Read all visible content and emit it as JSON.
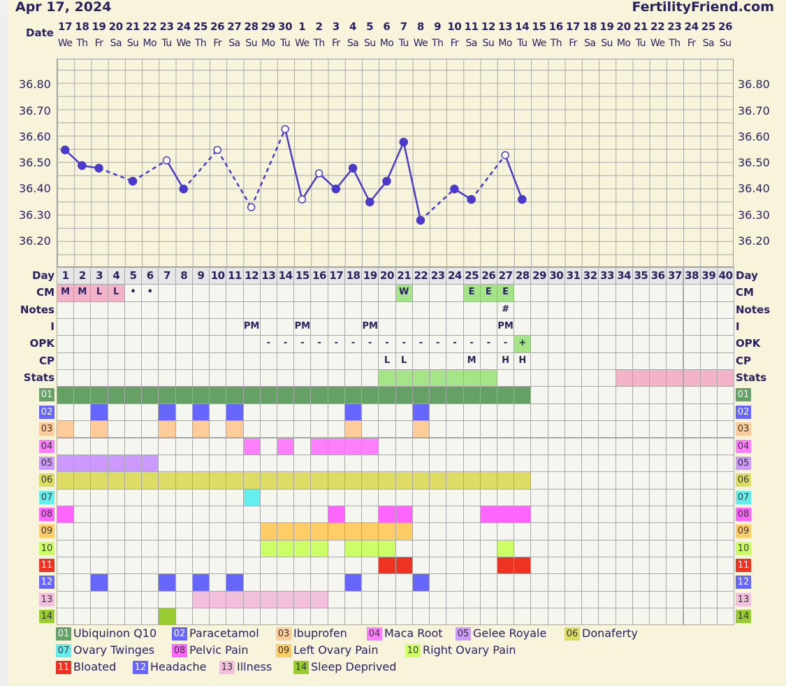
{
  "header": {
    "date_title": "Apr 17, 2024",
    "site": "FertilityFriend.com"
  },
  "row_labels": {
    "date": "Date",
    "day": "Day",
    "cm": "CM",
    "notes": "Notes",
    "i": "I",
    "opk": "OPK",
    "cp": "CP",
    "stats": "Stats"
  },
  "dates": [
    "17",
    "18",
    "19",
    "20",
    "21",
    "22",
    "23",
    "24",
    "25",
    "26",
    "27",
    "28",
    "29",
    "30",
    "1",
    "2",
    "3",
    "4",
    "5",
    "6",
    "7",
    "8",
    "9",
    "10",
    "11",
    "12",
    "13",
    "14",
    "15",
    "16",
    "17",
    "18",
    "19",
    "20",
    "21",
    "22",
    "23",
    "24",
    "25",
    "26"
  ],
  "weekdays": [
    "We",
    "Th",
    "Fr",
    "Sa",
    "Su",
    "Mo",
    "Tu",
    "We",
    "Th",
    "Fr",
    "Sa",
    "Su",
    "Mo",
    "Tu",
    "We",
    "Th",
    "Fr",
    "Sa",
    "Su",
    "Mo",
    "Tu",
    "We",
    "Th",
    "Fr",
    "Sa",
    "Su",
    "Mo",
    "Tu",
    "We",
    "Th",
    "Fr",
    "Sa",
    "Su",
    "Mo",
    "Tu",
    "We",
    "Th",
    "Fr",
    "Sa",
    "Su"
  ],
  "y_ticks": [
    "36.80",
    "36.70",
    "36.60",
    "36.50",
    "36.40",
    "36.30",
    "36.20"
  ],
  "temp_range": [
    36.1,
    36.9
  ],
  "temps": [
    {
      "day": 1,
      "t": 36.55,
      "open": false
    },
    {
      "day": 2,
      "t": 36.49,
      "open": false
    },
    {
      "day": 3,
      "t": 36.48,
      "open": false
    },
    {
      "day": 5,
      "t": 36.43,
      "open": false
    },
    {
      "day": 7,
      "t": 36.51,
      "open": true
    },
    {
      "day": 8,
      "t": 36.4,
      "open": false
    },
    {
      "day": 10,
      "t": 36.55,
      "open": true
    },
    {
      "day": 12,
      "t": 36.33,
      "open": true
    },
    {
      "day": 14,
      "t": 36.63,
      "open": true
    },
    {
      "day": 15,
      "t": 36.36,
      "open": true
    },
    {
      "day": 16,
      "t": 36.46,
      "open": true
    },
    {
      "day": 17,
      "t": 36.4,
      "open": false
    },
    {
      "day": 18,
      "t": 36.48,
      "open": false
    },
    {
      "day": 19,
      "t": 36.35,
      "open": false
    },
    {
      "day": 20,
      "t": 36.43,
      "open": false
    },
    {
      "day": 21,
      "t": 36.58,
      "open": false
    },
    {
      "day": 22,
      "t": 36.28,
      "open": false
    },
    {
      "day": 24,
      "t": 36.4,
      "open": false
    },
    {
      "day": 25,
      "t": 36.36,
      "open": false
    },
    {
      "day": 27,
      "t": 36.53,
      "open": true
    },
    {
      "day": 28,
      "t": 36.36,
      "open": false
    }
  ],
  "line_color": "#4a3acc",
  "cm": {
    "1": "M",
    "2": "M",
    "3": "L",
    "4": "L",
    "5": "•",
    "6": "•",
    "21": "W",
    "25": "E",
    "26": "E",
    "27": "E"
  },
  "cm_colors": {
    "1": "#f2b3c8",
    "2": "#f2b3c8",
    "3": "#f2b3c8",
    "4": "#f2b3c8",
    "21": "#a6e48a",
    "25": "#a6e48a",
    "26": "#a6e48a",
    "27": "#a6e48a"
  },
  "notes": {
    "27": "#"
  },
  "intercourse": {
    "12": "PM",
    "15": "PM",
    "19": "PM",
    "27": "PM"
  },
  "opk": {
    "13": "-",
    "14": "-",
    "15": "-",
    "16": "-",
    "17": "-",
    "18": "-",
    "19": "-",
    "20": "-",
    "21": "-",
    "22": "-",
    "23": "-",
    "24": "-",
    "25": "-",
    "26": "-",
    "27": "-",
    "28": "+"
  },
  "opk_colors": {
    "28": "#a6e48a"
  },
  "cp": {
    "20": "L",
    "21": "L",
    "25": "M",
    "27": "H",
    "28": "H"
  },
  "stats_green": [
    20,
    21,
    22,
    23,
    24,
    25,
    26
  ],
  "stats_pink": [
    34,
    35,
    36,
    37,
    38,
    39,
    40
  ],
  "meds": [
    {
      "code": "01",
      "name": "Ubiquinon Q10",
      "color": "#65a067",
      "text": "#fff",
      "days": [
        1,
        2,
        3,
        4,
        5,
        6,
        7,
        8,
        9,
        10,
        11,
        12,
        13,
        14,
        15,
        16,
        17,
        18,
        19,
        20,
        21,
        22,
        23,
        24,
        25,
        26,
        27,
        28
      ]
    },
    {
      "code": "02",
      "name": "Paracetamol",
      "color": "#6666ff",
      "text": "#fff",
      "days": [
        3,
        7,
        9,
        11,
        18,
        22
      ]
    },
    {
      "code": "03",
      "name": "Ibuprofen",
      "color": "#ffcc99",
      "text": "#333",
      "days": [
        1,
        3,
        7,
        9,
        11,
        18,
        22
      ]
    },
    {
      "code": "04",
      "name": "Maca Root",
      "color": "#ff80ff",
      "text": "#333",
      "days": [
        12,
        14,
        16,
        17,
        18,
        19
      ]
    },
    {
      "code": "05",
      "name": "Gelee Royale",
      "color": "#cc99ff",
      "text": "#333",
      "days": [
        1,
        2,
        3,
        4,
        5,
        6
      ]
    },
    {
      "code": "06",
      "name": "Donaferty",
      "color": "#dddd66",
      "text": "#333",
      "days": [
        1,
        2,
        3,
        4,
        5,
        6,
        7,
        8,
        9,
        10,
        11,
        12,
        13,
        14,
        15,
        16,
        17,
        18,
        19,
        20,
        21,
        22,
        23,
        24,
        25,
        26,
        27,
        28
      ]
    },
    {
      "code": "07",
      "name": "Ovary Twinges",
      "color": "#66eeee",
      "text": "#333",
      "days": [
        12
      ]
    },
    {
      "code": "08",
      "name": "Pelvic Pain",
      "color": "#ff66ff",
      "text": "#333",
      "days": [
        1,
        17,
        20,
        21,
        26,
        27,
        28
      ]
    },
    {
      "code": "09",
      "name": "Left Ovary Pain",
      "color": "#ffcc66",
      "text": "#333",
      "days": [
        13,
        14,
        15,
        16,
        17,
        18,
        19,
        20,
        21
      ]
    },
    {
      "code": "10",
      "name": "Right Ovary Pain",
      "color": "#ccff66",
      "text": "#333",
      "days": [
        13,
        14,
        15,
        16,
        18,
        19,
        20,
        27
      ]
    },
    {
      "code": "11",
      "name": "Bloated",
      "color": "#ee3322",
      "text": "#fff",
      "days": [
        20,
        21,
        27,
        28
      ]
    },
    {
      "code": "12",
      "name": "Headache",
      "color": "#6666ff",
      "text": "#fff",
      "days": [
        3,
        7,
        9,
        11,
        18,
        22
      ]
    },
    {
      "code": "13",
      "name": "Illness",
      "color": "#f2c0dc",
      "text": "#333",
      "days": [
        9,
        10,
        11,
        12,
        13,
        14,
        15,
        16
      ]
    },
    {
      "code": "14",
      "name": "Sleep Deprived",
      "color": "#99cc33",
      "text": "#333",
      "days": [
        7
      ]
    }
  ]
}
